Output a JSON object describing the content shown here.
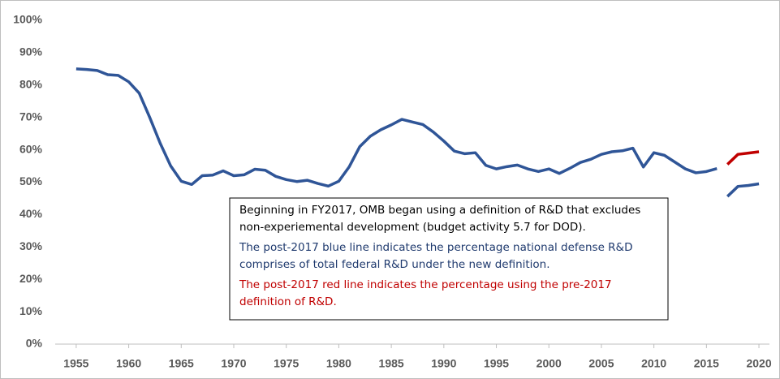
{
  "chart_data": {
    "type": "line",
    "x": [
      1955,
      1956,
      1957,
      1958,
      1959,
      1960,
      1961,
      1962,
      1963,
      1964,
      1965,
      1966,
      1967,
      1968,
      1969,
      1970,
      1971,
      1972,
      1973,
      1974,
      1975,
      1976,
      1977,
      1978,
      1979,
      1980,
      1981,
      1982,
      1983,
      1984,
      1985,
      1986,
      1987,
      1988,
      1989,
      1990,
      1991,
      1992,
      1993,
      1994,
      1995,
      1996,
      1997,
      1998,
      1999,
      2000,
      2001,
      2002,
      2003,
      2004,
      2005,
      2006,
      2007,
      2008,
      2009,
      2010,
      2011,
      2012,
      2013,
      2014,
      2015,
      2016,
      2017,
      2018,
      2019,
      2020
    ],
    "series": [
      {
        "color": "#2f5597",
        "values": [
          85,
          84.8,
          84.5,
          83.2,
          83,
          81,
          77.5,
          70,
          62,
          55,
          50.3,
          49.3,
          52,
          52.2,
          53.5,
          52,
          52.3,
          54,
          53.7,
          51.8,
          50.8,
          50.2,
          50.6,
          49.6,
          48.8,
          50.3,
          54.8,
          61,
          64.2,
          66.2,
          67.7,
          69.4,
          68.6,
          67.8,
          65.5,
          62.7,
          59.6,
          58.8,
          59.1,
          55.2,
          54.1,
          54.8,
          55.3,
          54.1,
          53.3,
          54.1,
          52.7,
          54.3,
          56.1,
          57.1,
          58.6,
          59.4,
          59.7,
          60.5,
          54.7,
          59.1,
          58.3,
          56.2,
          54.1,
          52.9,
          53.3,
          54.2,
          null,
          null,
          null,
          null
        ]
      },
      {
        "color": "#2f5597",
        "values": [
          null,
          null,
          null,
          null,
          null,
          null,
          null,
          null,
          null,
          null,
          null,
          null,
          null,
          null,
          null,
          null,
          null,
          null,
          null,
          null,
          null,
          null,
          null,
          null,
          null,
          null,
          null,
          null,
          null,
          null,
          null,
          null,
          null,
          null,
          null,
          null,
          null,
          null,
          null,
          null,
          null,
          null,
          null,
          null,
          null,
          null,
          null,
          null,
          null,
          null,
          null,
          null,
          null,
          null,
          null,
          null,
          null,
          null,
          null,
          null,
          null,
          null,
          45.6,
          48.7,
          49,
          49.5
        ]
      },
      {
        "color": "#c00000",
        "values": [
          null,
          null,
          null,
          null,
          null,
          null,
          null,
          null,
          null,
          null,
          null,
          null,
          null,
          null,
          null,
          null,
          null,
          null,
          null,
          null,
          null,
          null,
          null,
          null,
          null,
          null,
          null,
          null,
          null,
          null,
          null,
          null,
          null,
          null,
          null,
          null,
          null,
          null,
          null,
          null,
          null,
          null,
          null,
          null,
          null,
          null,
          null,
          null,
          null,
          null,
          null,
          null,
          null,
          null,
          null,
          null,
          null,
          null,
          null,
          null,
          null,
          null,
          55.5,
          58.6,
          59,
          59.4
        ]
      }
    ],
    "xlim": [
      1953,
      2021
    ],
    "xticks": [
      1955,
      1960,
      1965,
      1970,
      1975,
      1980,
      1985,
      1990,
      1995,
      2000,
      2005,
      2010,
      2015,
      2020
    ],
    "ylim": [
      0,
      100
    ],
    "yticks": [
      {
        "value": 0,
        "label": "0%"
      },
      {
        "value": 10,
        "label": "10%"
      },
      {
        "value": 20,
        "label": "20%"
      },
      {
        "value": 30,
        "label": "30%"
      },
      {
        "value": 40,
        "label": "40%"
      },
      {
        "value": 50,
        "label": "50%"
      },
      {
        "value": 60,
        "label": "60%"
      },
      {
        "value": 70,
        "label": "70%"
      },
      {
        "value": 80,
        "label": "80%"
      },
      {
        "value": 90,
        "label": "90%"
      },
      {
        "value": 100,
        "label": "100%"
      }
    ],
    "grid": false,
    "annotation": [
      {
        "text": "Beginning in FY2017, OMB began using a definition of R&D that excludes",
        "color": "#000000"
      },
      {
        "text": "non-experiemental development  (budget activity 5.7 for DOD).",
        "color": "#000000"
      },
      {
        "text": "The post-2017 blue line indicates the percentage national defense R&D",
        "color": "#1f3a6e"
      },
      {
        "text": "comprises of total federal R&D under the new definition.",
        "color": "#1f3a6e"
      },
      {
        "text": "The post-2017 red line indicates the percentage using the pre-2017",
        "color": "#c00000"
      },
      {
        "text": "definition of R&D.",
        "color": "#c00000"
      }
    ]
  }
}
